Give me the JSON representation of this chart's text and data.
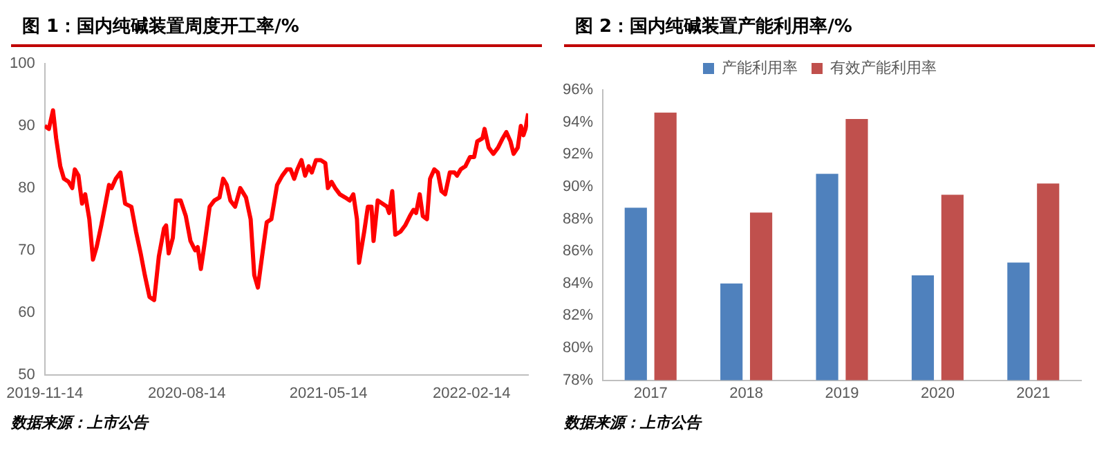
{
  "chart_data": [
    {
      "type": "line",
      "title": "图 1：国内纯碱装置周度开工率/%",
      "annotations": [
        "数据来源：上市公告"
      ],
      "marker": "none",
      "xlim": [
        "2019-11-14",
        "2022-06-03"
      ],
      "xticks": [
        "2019-11-14",
        "2020-08-14",
        "2021-05-14",
        "2022-02-14"
      ],
      "ylim": [
        50,
        100
      ],
      "yticks": [
        50,
        60,
        70,
        80,
        90,
        100
      ],
      "series": [
        {
          "color": "#ff0000",
          "x": [
            "2019-11-14",
            "2019-11-22",
            "2019-11-30",
            "2019-12-06",
            "2019-12-14",
            "2019-12-21",
            "2019-12-30",
            "2020-01-06",
            "2020-01-11",
            "2020-01-18",
            "2020-01-25",
            "2020-01-31",
            "2020-02-08",
            "2020-02-15",
            "2020-02-22",
            "2020-03-02",
            "2020-03-09",
            "2020-03-17",
            "2020-03-22",
            "2020-03-30",
            "2020-04-08",
            "2020-04-17",
            "2020-04-29",
            "2020-05-08",
            "2020-05-17",
            "2020-05-25",
            "2020-06-03",
            "2020-06-12",
            "2020-06-21",
            "2020-07-01",
            "2020-07-05",
            "2020-07-10",
            "2020-07-18",
            "2020-07-24",
            "2020-08-02",
            "2020-08-12",
            "2020-08-21",
            "2020-08-30",
            "2020-09-04",
            "2020-09-10",
            "2020-09-18",
            "2020-09-27",
            "2020-10-06",
            "2020-10-16",
            "2020-10-23",
            "2020-10-30",
            "2020-11-06",
            "2020-11-15",
            "2020-11-25",
            "2020-12-06",
            "2020-12-15",
            "2020-12-22",
            "2020-12-29",
            "2021-01-06",
            "2021-01-15",
            "2021-01-24",
            "2021-02-04",
            "2021-02-14",
            "2021-02-23",
            "2021-03-02",
            "2021-03-09",
            "2021-03-15",
            "2021-03-23",
            "2021-03-30",
            "2021-04-06",
            "2021-04-12",
            "2021-04-20",
            "2021-04-29",
            "2021-05-08",
            "2021-05-13",
            "2021-05-20",
            "2021-05-27",
            "2021-06-05",
            "2021-06-15",
            "2021-06-24",
            "2021-07-01",
            "2021-07-08",
            "2021-07-12",
            "2021-07-22",
            "2021-07-29",
            "2021-08-05",
            "2021-08-09",
            "2021-08-17",
            "2021-08-26",
            "2021-09-04",
            "2021-09-08",
            "2021-09-14",
            "2021-09-20",
            "2021-09-30",
            "2021-10-09",
            "2021-10-18",
            "2021-10-25",
            "2021-10-30",
            "2021-11-06",
            "2021-11-12",
            "2021-11-20",
            "2021-11-26",
            "2021-12-04",
            "2021-12-11",
            "2021-12-18",
            "2021-12-25",
            "2022-01-03",
            "2022-01-12",
            "2022-01-17",
            "2022-01-24",
            "2022-02-02",
            "2022-02-11",
            "2022-02-19",
            "2022-02-25",
            "2022-03-07",
            "2022-03-11",
            "2022-03-19",
            "2022-03-28",
            "2022-04-06",
            "2022-04-15",
            "2022-04-22",
            "2022-04-30",
            "2022-05-06",
            "2022-05-14",
            "2022-05-20",
            "2022-05-25",
            "2022-05-29",
            "2022-06-03"
          ],
          "values": [
            90,
            89.5,
            92.5,
            88,
            83.5,
            81.5,
            81,
            80,
            83,
            82,
            77.5,
            79,
            75,
            68.5,
            70.5,
            74,
            77,
            80.5,
            80,
            81.5,
            82.5,
            77.5,
            77,
            73,
            69.5,
            66,
            62.5,
            62,
            69,
            73.5,
            74,
            69.5,
            72,
            78,
            78,
            75.5,
            71.5,
            70,
            70.5,
            67,
            71.5,
            77,
            78,
            78.5,
            81.5,
            80.5,
            78,
            77,
            80,
            78.5,
            75,
            66,
            64,
            69,
            74.5,
            75,
            80.5,
            82,
            83,
            83,
            81.5,
            83,
            84.5,
            82,
            83.5,
            82.5,
            84.5,
            84.5,
            84,
            80,
            81,
            80,
            79,
            78.5,
            78,
            79,
            75,
            68,
            73,
            77,
            77,
            71.5,
            78,
            77.5,
            77,
            76,
            79.5,
            72.5,
            73,
            74,
            75.5,
            76.5,
            76,
            79,
            75.5,
            75,
            81.5,
            83,
            82.5,
            79.5,
            79,
            82.5,
            82.5,
            82,
            83,
            83.5,
            85,
            85,
            87.5,
            88,
            89.5,
            86.5,
            85.5,
            86.5,
            88,
            89,
            87.5,
            85.5,
            86.5,
            90,
            88.5,
            89.5,
            92
          ]
        }
      ]
    },
    {
      "type": "bar",
      "title": "图 2：国内纯碱装置产能利用率/%",
      "annotations": [
        "数据来源：上市公告"
      ],
      "legend": "top",
      "categories": [
        "2017",
        "2018",
        "2019",
        "2020",
        "2021"
      ],
      "ylim": [
        78,
        96
      ],
      "yticks": [
        {
          "value": 78,
          "label": "78%"
        },
        {
          "value": 80,
          "label": "80%"
        },
        {
          "value": 82,
          "label": "82%"
        },
        {
          "value": 84,
          "label": "84%"
        },
        {
          "value": 86,
          "label": "86%"
        },
        {
          "value": 88,
          "label": "88%"
        },
        {
          "value": 90,
          "label": "90%"
        },
        {
          "value": 92,
          "label": "92%"
        },
        {
          "value": 94,
          "label": "94%"
        },
        {
          "value": 96,
          "label": "96%"
        }
      ],
      "series": [
        {
          "name": "产能利用率",
          "color": "#4f81bd",
          "values": [
            88.7,
            84.0,
            90.8,
            84.5,
            85.3
          ]
        },
        {
          "name": "有效产能利用率",
          "color": "#c0504d",
          "values": [
            94.6,
            88.4,
            94.2,
            89.5,
            90.2
          ]
        }
      ]
    }
  ]
}
